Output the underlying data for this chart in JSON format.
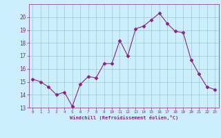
{
  "x": [
    0,
    1,
    2,
    3,
    4,
    5,
    6,
    7,
    8,
    9,
    10,
    11,
    12,
    13,
    14,
    15,
    16,
    17,
    18,
    19,
    20,
    21,
    22,
    23
  ],
  "y": [
    15.2,
    15.0,
    14.6,
    14.0,
    14.2,
    13.1,
    14.8,
    15.4,
    15.3,
    16.4,
    16.4,
    18.2,
    17.0,
    19.1,
    19.3,
    19.8,
    20.3,
    19.5,
    18.9,
    18.8,
    16.7,
    15.6,
    14.6,
    14.4
  ],
  "line_color": "#882288",
  "marker": "D",
  "marker_size": 2.5,
  "bg_color": "#cceeff",
  "grid_color": "#99cccc",
  "xlabel": "Windchill (Refroidissement éolien,°C)",
  "xlabel_color": "#882288",
  "tick_color": "#882288",
  "ylim": [
    13,
    21
  ],
  "xlim": [
    -0.5,
    23.5
  ],
  "yticks": [
    13,
    14,
    15,
    16,
    17,
    18,
    19,
    20
  ],
  "xticks": [
    0,
    1,
    2,
    3,
    4,
    5,
    6,
    7,
    8,
    9,
    10,
    11,
    12,
    13,
    14,
    15,
    16,
    17,
    18,
    19,
    20,
    21,
    22,
    23
  ]
}
